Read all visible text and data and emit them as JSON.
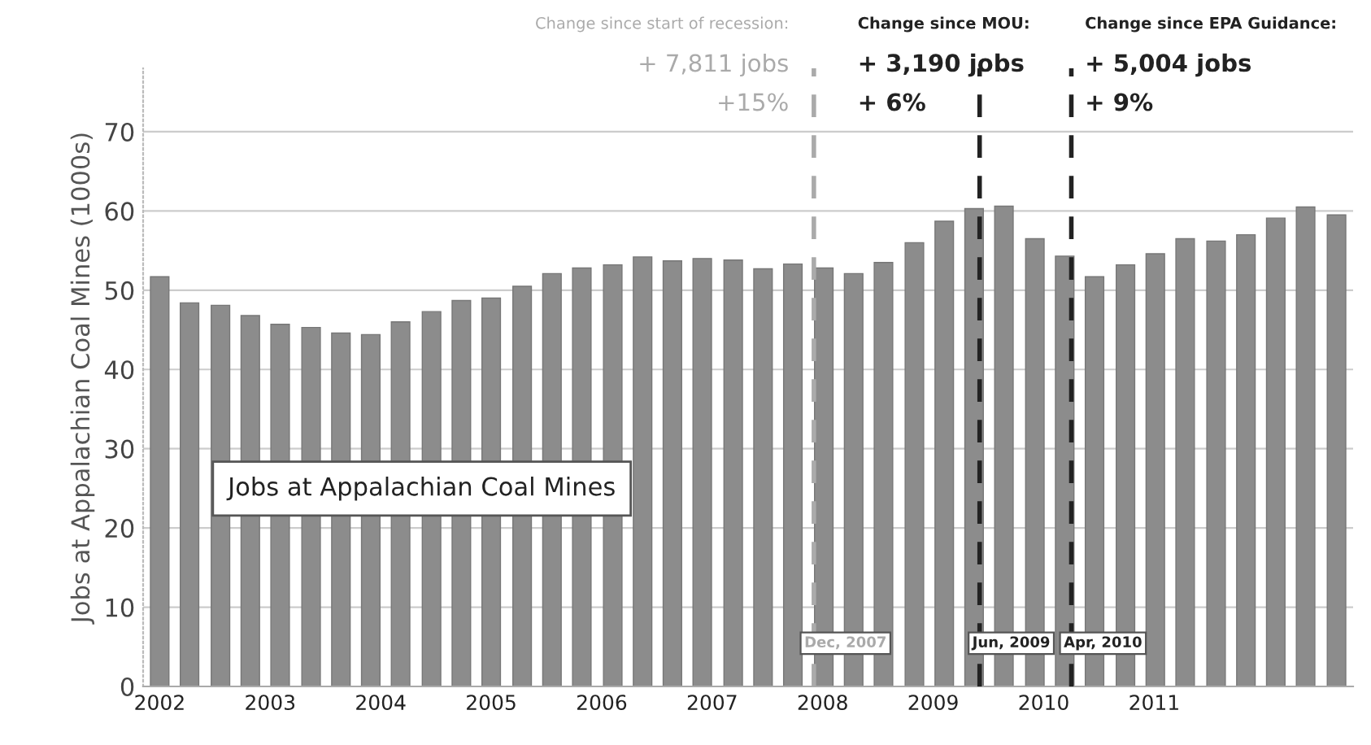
{
  "chart_data": {
    "type": "bar",
    "ylabel": "Jobs at Appalachian Coal Mines (1000s)",
    "x": [
      2002.0,
      2002.27,
      2002.55,
      2002.82,
      2003.09,
      2003.37,
      2003.64,
      2003.91,
      2004.18,
      2004.46,
      2004.73,
      2005.0,
      2005.28,
      2005.55,
      2005.82,
      2006.1,
      2006.37,
      2006.64,
      2006.91,
      2007.19,
      2007.46,
      2007.73,
      2008.01,
      2008.28,
      2008.55,
      2008.83,
      2009.1,
      2009.37,
      2009.64,
      2009.92,
      2010.19,
      2010.46,
      2010.74,
      2011.01,
      2011.28,
      2011.56,
      2011.83,
      2012.1,
      2012.37,
      2012.65
    ],
    "values": [
      51.7,
      48.4,
      48.1,
      46.8,
      45.7,
      45.3,
      44.6,
      44.4,
      46.0,
      47.3,
      48.7,
      49.0,
      50.5,
      52.1,
      52.8,
      53.2,
      54.2,
      53.7,
      54.0,
      53.8,
      52.7,
      53.3,
      52.8,
      52.1,
      53.5,
      56.0,
      58.7,
      60.3,
      60.6,
      56.5,
      54.3,
      51.7,
      53.2,
      54.6,
      56.5,
      56.2,
      57.0,
      59.1,
      60.5,
      59.5
    ],
    "color": "#8c8c8c",
    "xlim": [
      2001.85,
      2012.8
    ],
    "xticks": [
      2002,
      2003,
      2004,
      2005,
      2006,
      2007,
      2008,
      2009,
      2010,
      2011
    ],
    "ylim": [
      0,
      78
    ],
    "yticks": [
      0,
      10,
      20,
      30,
      40,
      50,
      60,
      70
    ],
    "grid": "y",
    "ref_lines": [
      {
        "axis": "x",
        "value": 2007.92,
        "label": "Dec, 2007",
        "color": "#aaaaaa",
        "line_style": "dashed"
      },
      {
        "axis": "x",
        "value": 2009.42,
        "label": "Jun, 2009",
        "color": "#222222",
        "line_style": "dashed"
      },
      {
        "axis": "x",
        "value": 2010.25,
        "label": "Apr, 2010",
        "color": "#222222",
        "line_style": "dashed"
      }
    ],
    "annotations": [
      "Change since start of recession:\n+ 7,811 jobs\n+15%",
      "Change since MOU:\n+ 3,190 jobs\n+ 6%",
      "Change since EPA Guidance:\n+ 5,004 jobs\n+ 9%",
      "Jobs at Appalachian Coal Mines"
    ]
  }
}
